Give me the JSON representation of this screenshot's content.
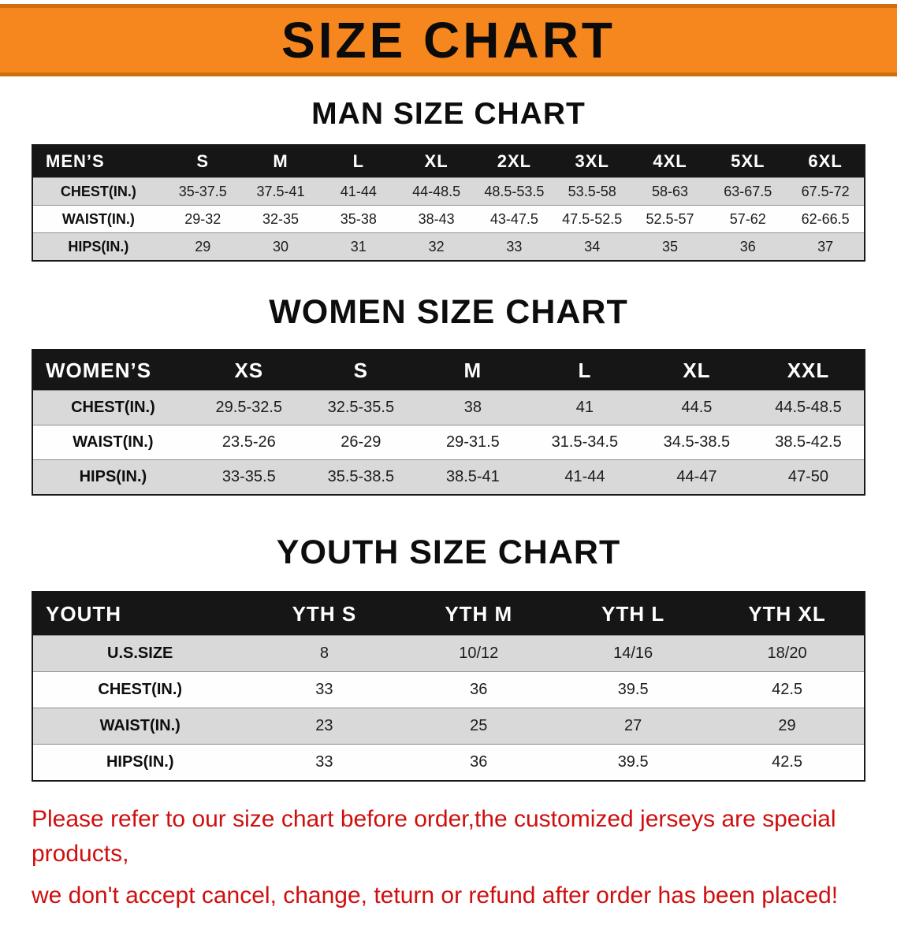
{
  "banner": {
    "title": "SIZE CHART"
  },
  "theme": {
    "banner_bg": "#f6871f",
    "banner_edge": "#cf6e0d",
    "header_bg": "#161616",
    "header_fg": "#ffffff",
    "row_gray": "#d9d9d9",
    "row_white": "#fefefe",
    "heading_color": "#0d0d0d",
    "disclaimer_red": "#cf0f0f"
  },
  "sections": [
    {
      "heading": "MAN SIZE CHART",
      "table": {
        "header": [
          "MEN’S",
          "S",
          "M",
          "L",
          "XL",
          "2XL",
          "3XL",
          "4XL",
          "5XL",
          "6XL"
        ],
        "rows": [
          {
            "label": "CHEST(IN.)",
            "values": [
              "35-37.5",
              "37.5-41",
              "41-44",
              "44-48.5",
              "48.5-53.5",
              "53.5-58",
              "58-63",
              "63-67.5",
              "67.5-72"
            ]
          },
          {
            "label": "WAIST(IN.)",
            "values": [
              "29-32",
              "32-35",
              "35-38",
              "38-43",
              "43-47.5",
              "47.5-52.5",
              "52.5-57",
              "57-62",
              "62-66.5"
            ]
          },
          {
            "label": "HIPS(IN.)",
            "values": [
              "29",
              "30",
              "31",
              "32",
              "33",
              "34",
              "35",
              "36",
              "37"
            ]
          }
        ]
      }
    },
    {
      "heading": "WOMEN SIZE CHART",
      "table": {
        "header": [
          "WOMEN’S",
          "XS",
          "S",
          "M",
          "L",
          "XL",
          "XXL"
        ],
        "rows": [
          {
            "label": "CHEST(IN.)",
            "values": [
              "29.5-32.5",
              "32.5-35.5",
              "38",
              "41",
              "44.5",
              "44.5-48.5"
            ]
          },
          {
            "label": "WAIST(IN.)",
            "values": [
              "23.5-26",
              "26-29",
              "29-31.5",
              "31.5-34.5",
              "34.5-38.5",
              "38.5-42.5"
            ]
          },
          {
            "label": "HIPS(IN.)",
            "values": [
              "33-35.5",
              "35.5-38.5",
              "38.5-41",
              "41-44",
              "44-47",
              "47-50"
            ]
          }
        ]
      }
    },
    {
      "heading": "YOUTH SIZE CHART",
      "table": {
        "header": [
          "YOUTH",
          "YTH S",
          "YTH M",
          "YTH L",
          "YTH XL"
        ],
        "rows": [
          {
            "label": "U.S.SIZE",
            "values": [
              "8",
              "10/12",
              "14/16",
              "18/20"
            ]
          },
          {
            "label": "CHEST(IN.)",
            "values": [
              "33",
              "36",
              "39.5",
              "42.5"
            ]
          },
          {
            "label": "WAIST(IN.)",
            "values": [
              "23",
              "25",
              "27",
              "29"
            ]
          },
          {
            "label": "HIPS(IN.)",
            "values": [
              "33",
              "36",
              "39.5",
              "42.5"
            ]
          }
        ]
      }
    }
  ],
  "disclaimer": {
    "line1": "Please refer to our size chart before order,the customized jerseys are special products,",
    "line2": "we don't accept cancel, change, teturn or refund after order has been placed!"
  }
}
